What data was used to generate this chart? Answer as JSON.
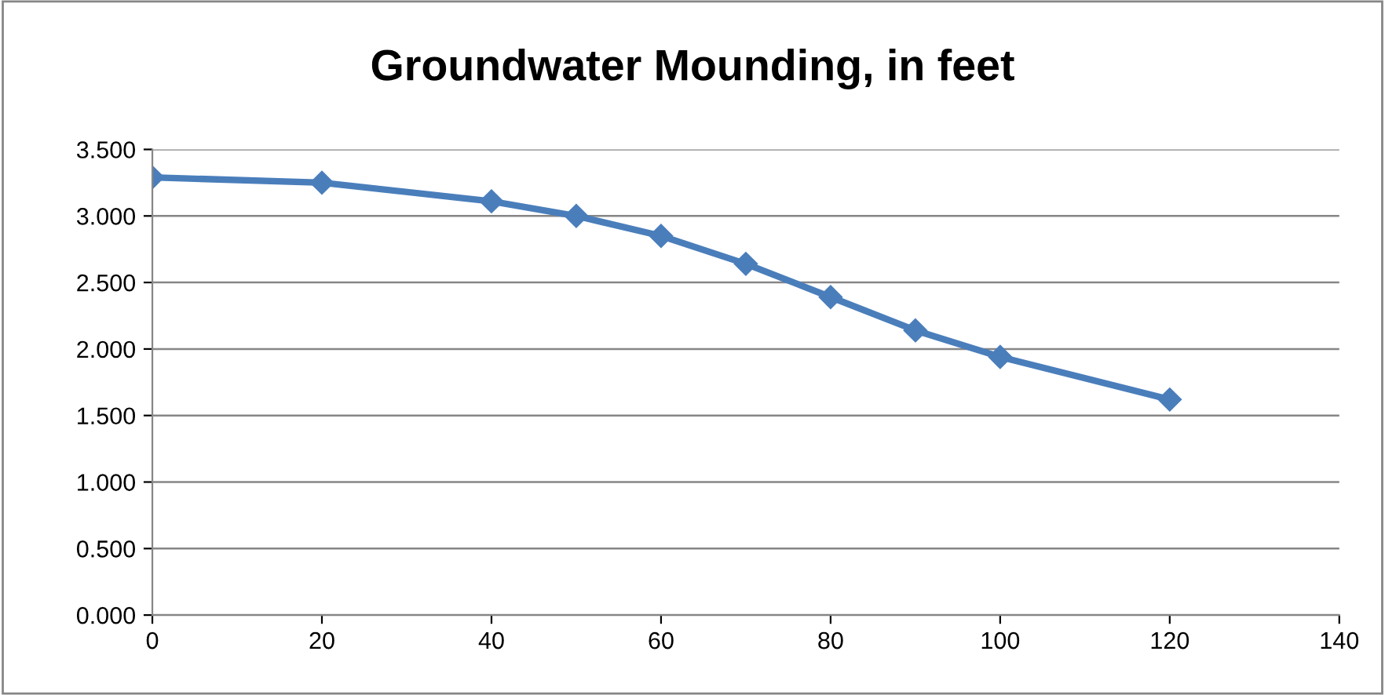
{
  "chart_data": {
    "type": "line",
    "title": "Groundwater Mounding, in feet",
    "x": [
      0,
      20,
      40,
      50,
      60,
      70,
      80,
      90,
      100,
      120
    ],
    "series": [
      {
        "color": "#4a7ebb",
        "values": [
          3.29,
          3.25,
          3.11,
          3.0,
          2.85,
          2.64,
          2.39,
          2.14,
          1.94,
          1.62
        ]
      }
    ],
    "xlim": [
      0,
      140
    ],
    "xticks": [
      0,
      20,
      40,
      60,
      80,
      100,
      120,
      140
    ],
    "ylim": [
      0,
      3.5
    ],
    "yticks": [
      {
        "value": 0,
        "label": "0.000"
      },
      {
        "value": 0.5,
        "label": "0.500"
      },
      {
        "value": 1,
        "label": "1.000"
      },
      {
        "value": 1.5,
        "label": "1.500"
      },
      {
        "value": 2,
        "label": "2.000"
      },
      {
        "value": 2.5,
        "label": "2.500"
      },
      {
        "value": 3,
        "label": "3.000"
      },
      {
        "value": 3.5,
        "label": "3.500"
      }
    ],
    "grid": "y",
    "marker": "diamond",
    "line_style": "solid",
    "legend": false
  }
}
